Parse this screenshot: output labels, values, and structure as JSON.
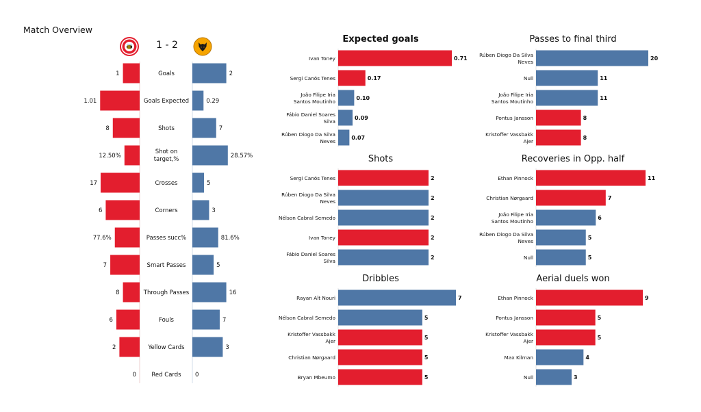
{
  "title": "Match Overview",
  "score": "1 - 2",
  "colors": {
    "home": "#e31e2e",
    "away": "#4f77a6"
  },
  "home_badge_icon": "bees-crest-icon",
  "away_badge_icon": "wolf-crest-icon",
  "chart_data": [
    {
      "type": "bar",
      "title": "",
      "orientation": "diverging-horizontal",
      "categories": [
        "Goals",
        "Goals Expected",
        "Shots",
        "Shot on target,%",
        "Crosses",
        "Corners",
        "Passes succ%",
        "Smart Passes",
        "Through Passes",
        "Fouls",
        "Yellow Cards",
        "Red Cards"
      ],
      "series": [
        {
          "values": [
            1,
            1.01,
            8,
            12.5,
            17,
            6,
            77.6,
            7,
            8,
            6,
            2,
            0
          ],
          "labels": [
            "1",
            "1.01",
            "8",
            "12.50%",
            "17",
            "6",
            "77.6%",
            "7",
            "8",
            "6",
            "2",
            "0"
          ],
          "share": [
            0.33,
            0.78,
            0.53,
            0.3,
            0.77,
            0.67,
            0.49,
            0.58,
            0.33,
            0.46,
            0.4,
            0
          ]
        },
        {
          "values": [
            2,
            0.29,
            7,
            28.57,
            5,
            3,
            81.6,
            5,
            16,
            7,
            3,
            0
          ],
          "labels": [
            "2",
            "0.29",
            "7",
            "28.57%",
            "5",
            "3",
            "81.6%",
            "5",
            "16",
            "7",
            "3",
            "0"
          ],
          "share": [
            0.67,
            0.22,
            0.47,
            0.7,
            0.23,
            0.33,
            0.51,
            0.42,
            0.67,
            0.54,
            0.6,
            0
          ]
        }
      ]
    },
    {
      "type": "bar",
      "title": "Expected goals",
      "title_bold": true,
      "categories": [
        "Ivan Toney",
        "Sergi Canós Tenes",
        "João Filipe Iria Santos Moutinho",
        "Fábio Daniel Soares Silva",
        "Rúben Diogo Da Silva Neves"
      ],
      "values": [
        0.71,
        0.17,
        0.1,
        0.09,
        0.07
      ],
      "value_labels": [
        "0.71",
        "0.17",
        "0.10",
        "0.09",
        "0.07"
      ],
      "team": [
        "home",
        "home",
        "away",
        "away",
        "away"
      ],
      "xlim": [
        0,
        0.71
      ]
    },
    {
      "type": "bar",
      "title": "Passes to final third",
      "title_bold": false,
      "categories": [
        "Rúben Diogo Da Silva Neves",
        "Null",
        "João Filipe Iria Santos Moutinho",
        "Pontus Jansson",
        "Kristoffer Vassbakk Ajer"
      ],
      "values": [
        20,
        11,
        11,
        8,
        8
      ],
      "value_labels": [
        "20",
        "11",
        "11",
        "8",
        "8"
      ],
      "team": [
        "away",
        "away",
        "away",
        "home",
        "home"
      ],
      "xlim": [
        0,
        20
      ]
    },
    {
      "type": "bar",
      "title": "Shots",
      "title_bold": false,
      "categories": [
        "Sergi Canós Tenes",
        "Rúben Diogo Da Silva Neves",
        "Nélson Cabral Semedo",
        "Ivan Toney",
        "Fábio Daniel Soares Silva"
      ],
      "values": [
        2,
        2,
        2,
        2,
        2
      ],
      "value_labels": [
        "2",
        "2",
        "2",
        "2",
        "2"
      ],
      "team": [
        "home",
        "away",
        "away",
        "home",
        "away"
      ],
      "xlim": [
        0,
        2
      ]
    },
    {
      "type": "bar",
      "title": "Recoveries in Opp. half",
      "title_bold": false,
      "categories": [
        "Ethan Pinnock",
        "Christian Nørgaard",
        "João Filipe Iria Santos Moutinho",
        "Rúben Diogo Da Silva Neves",
        "Null"
      ],
      "values": [
        11,
        7,
        6,
        5,
        5
      ],
      "value_labels": [
        "11",
        "7",
        "6",
        "5",
        "5"
      ],
      "team": [
        "home",
        "home",
        "away",
        "away",
        "away"
      ],
      "xlim": [
        0,
        11
      ]
    },
    {
      "type": "bar",
      "title": "Dribbles",
      "title_bold": false,
      "categories": [
        "Rayan Aït Nouri",
        "Nélson Cabral Semedo",
        "Kristoffer Vassbakk Ajer",
        "Christian Nørgaard",
        "Bryan Mbeumo"
      ],
      "values": [
        7,
        5,
        5,
        5,
        5
      ],
      "value_labels": [
        "7",
        "5",
        "5",
        "5",
        "5"
      ],
      "team": [
        "away",
        "away",
        "home",
        "home",
        "home"
      ],
      "xlim": [
        0,
        7
      ]
    },
    {
      "type": "bar",
      "title": "Aerial duels won",
      "title_bold": false,
      "categories": [
        "Ethan Pinnock",
        "Pontus Jansson",
        "Kristoffer Vassbakk Ajer",
        "Max Kilman",
        "Null"
      ],
      "values": [
        9,
        5,
        5,
        4,
        3
      ],
      "value_labels": [
        "9",
        "5",
        "5",
        "4",
        "3"
      ],
      "team": [
        "home",
        "home",
        "home",
        "away",
        "away"
      ],
      "xlim": [
        0,
        9
      ]
    }
  ]
}
